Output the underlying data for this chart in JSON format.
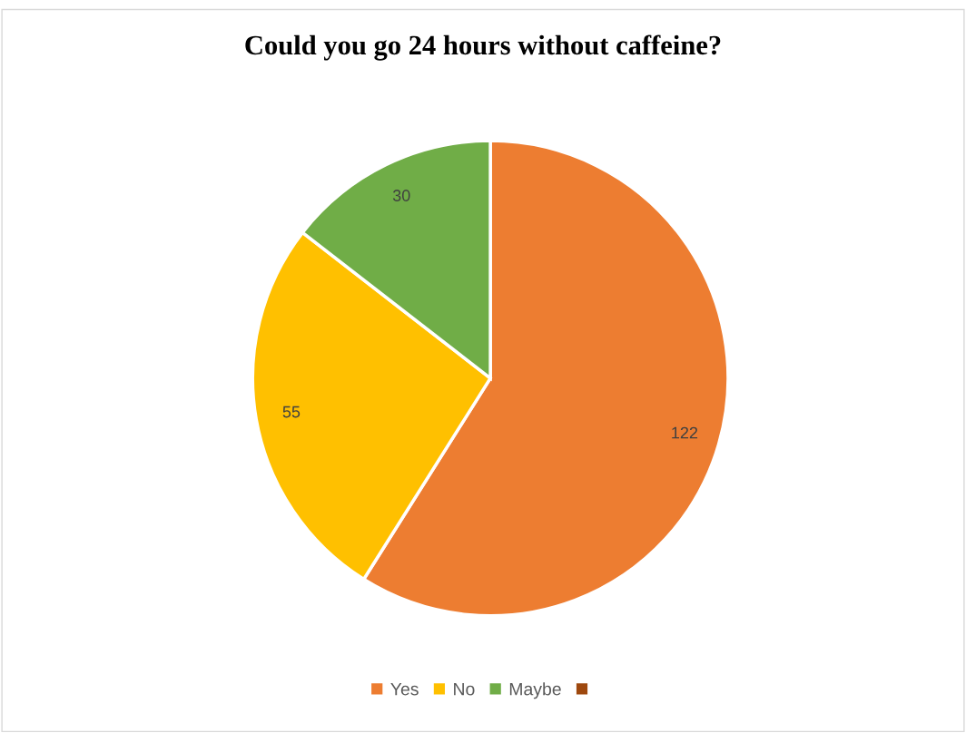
{
  "chart_data": {
    "type": "pie",
    "title": "Could you go 24 hours without caffeine?",
    "categories": [
      "Yes",
      "No",
      "Maybe",
      null
    ],
    "values": [
      122,
      55,
      30,
      null
    ],
    "colors": [
      "#ed7d31",
      "#ffc000",
      "#70ad47",
      "#9e480e"
    ],
    "data_labels": true,
    "legend": "bottom"
  }
}
